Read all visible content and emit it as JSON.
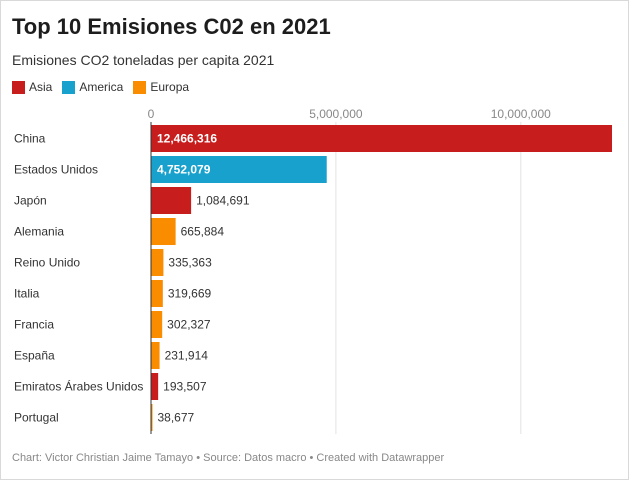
{
  "header": {
    "title": "Top 10 Emisiones C02 en 2021",
    "subtitle": "Emisiones CO2 toneladas per capita 2021"
  },
  "legend": [
    {
      "label": "Asia",
      "color": "#c71e1d"
    },
    {
      "label": "America",
      "color": "#18a1cd"
    },
    {
      "label": "Europa",
      "color": "#fa8c00"
    }
  ],
  "footer": {
    "credit": "Chart: Victor Christian Jaime Tamayo • Source: Datos macro • Created with Datawrapper"
  },
  "chart_data": {
    "type": "bar",
    "orientation": "horizontal",
    "title": "Top 10 Emisiones C02 en 2021",
    "subtitle": "Emisiones CO2 toneladas per capita 2021",
    "xlim": [
      0,
      12466316
    ],
    "xticks": [
      0,
      5000000,
      10000000
    ],
    "xtick_labels": [
      "0",
      "5,000,000",
      "10,000,000"
    ],
    "grid": true,
    "legend_position": "top-left",
    "categories": [
      "China",
      "Estados Unidos",
      "Japón",
      "Alemania",
      "Reino Unido",
      "Italia",
      "Francia",
      "España",
      "Emiratos Árabes Unidos",
      "Portugal"
    ],
    "values": [
      12466316,
      4752079,
      1084691,
      665884,
      335363,
      319669,
      302327,
      231914,
      193507,
      38677
    ],
    "value_labels": [
      "12,466,316",
      "4,752,079",
      "1,084,691",
      "665,884",
      "335,363",
      "319,669",
      "302,327",
      "231,914",
      "193,507",
      "38,677"
    ],
    "groups": [
      "Asia",
      "America",
      "Asia",
      "Europa",
      "Europa",
      "Europa",
      "Europa",
      "Europa",
      "Asia",
      "Europa"
    ]
  }
}
